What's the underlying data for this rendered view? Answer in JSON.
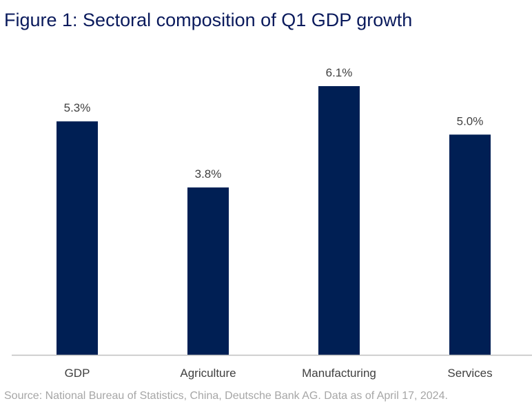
{
  "chart_data": {
    "type": "bar",
    "title": "Figure 1: Sectoral composition of Q1 GDP growth",
    "categories": [
      "GDP",
      "Agriculture",
      "Manufacturing",
      "Services"
    ],
    "values": [
      5.3,
      3.8,
      6.1,
      5.0
    ],
    "value_labels": [
      "5.3%",
      "3.8%",
      "6.1%",
      "5.0%"
    ],
    "xlabel": "",
    "ylabel": "",
    "ylim": [
      0,
      6.1
    ],
    "grid": false,
    "legend": "none",
    "colors": {
      "bar": "#001f54",
      "axis": "#bfbfbf",
      "label": "#404040",
      "title": "#0a1a5c",
      "source": "#a6a6a6"
    }
  },
  "source": "Source: National Bureau of Statistics, China, Deutsche Bank AG. Data as of April 17, 2024."
}
